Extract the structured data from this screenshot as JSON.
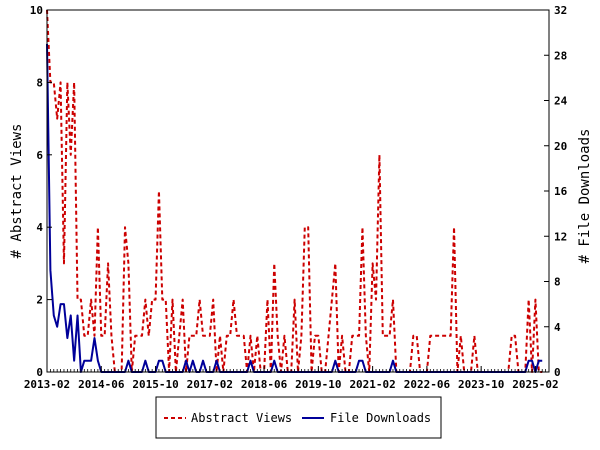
{
  "chart_data": {
    "type": "line",
    "ylabel_left": "# Abstract Views",
    "ylabel_right": "# File Downloads",
    "ylim_left": [
      0,
      10
    ],
    "ylim_right": [
      0,
      32
    ],
    "yticks_left": [
      "0",
      "2",
      "4",
      "6",
      "8",
      "10"
    ],
    "yticks_right": [
      "0",
      "4",
      "8",
      "12",
      "16",
      "20",
      "24",
      "28",
      "32"
    ],
    "xticks": [
      "2013-02",
      "2014-06",
      "2015-10",
      "2017-02",
      "2018-06",
      "2019-10",
      "2021-02",
      "2022-06",
      "2023-10",
      "2025-02"
    ],
    "x_range": [
      "2013-02",
      "2025-06"
    ],
    "legend_position": "bottom",
    "grid": false,
    "series": [
      {
        "name": "Abstract Views",
        "axis": "left",
        "color": "#cc0000",
        "style": "dashed",
        "points": [
          [
            "2013-02",
            10
          ],
          [
            "2013-03",
            8
          ],
          [
            "2013-04",
            8
          ],
          [
            "2013-05",
            7
          ],
          [
            "2013-06",
            8
          ],
          [
            "2013-07",
            3
          ],
          [
            "2013-08",
            8
          ],
          [
            "2013-09",
            6
          ],
          [
            "2013-10",
            8
          ],
          [
            "2013-11",
            2
          ],
          [
            "2013-12",
            2
          ],
          [
            "2014-01",
            1
          ],
          [
            "2014-02",
            1
          ],
          [
            "2014-03",
            2
          ],
          [
            "2014-04",
            1
          ],
          [
            "2014-05",
            4
          ],
          [
            "2014-06",
            1
          ],
          [
            "2014-07",
            1
          ],
          [
            "2014-08",
            3
          ],
          [
            "2014-09",
            1
          ],
          [
            "2014-10",
            0
          ],
          [
            "2014-11",
            0
          ],
          [
            "2014-12",
            0
          ],
          [
            "2015-01",
            4
          ],
          [
            "2015-02",
            3
          ],
          [
            "2015-03",
            0
          ],
          [
            "2015-04",
            1
          ],
          [
            "2015-05",
            1
          ],
          [
            "2015-06",
            1
          ],
          [
            "2015-07",
            2
          ],
          [
            "2015-08",
            1
          ],
          [
            "2015-09",
            2
          ],
          [
            "2015-10",
            2
          ],
          [
            "2015-11",
            5
          ],
          [
            "2015-12",
            2
          ],
          [
            "2016-01",
            2
          ],
          [
            "2016-02",
            0
          ],
          [
            "2016-03",
            2
          ],
          [
            "2016-04",
            0
          ],
          [
            "2016-05",
            1
          ],
          [
            "2016-06",
            2
          ],
          [
            "2016-07",
            0
          ],
          [
            "2016-08",
            1
          ],
          [
            "2016-09",
            1
          ],
          [
            "2016-10",
            1
          ],
          [
            "2016-11",
            2
          ],
          [
            "2016-12",
            1
          ],
          [
            "2017-01",
            1
          ],
          [
            "2017-02",
            1
          ],
          [
            "2017-03",
            2
          ],
          [
            "2017-04",
            0
          ],
          [
            "2017-05",
            1
          ],
          [
            "2017-06",
            0
          ],
          [
            "2017-07",
            1
          ],
          [
            "2017-08",
            1
          ],
          [
            "2017-09",
            2
          ],
          [
            "2017-10",
            1
          ],
          [
            "2017-11",
            1
          ],
          [
            "2017-12",
            1
          ],
          [
            "2018-01",
            0
          ],
          [
            "2018-02",
            1
          ],
          [
            "2018-03",
            0
          ],
          [
            "2018-04",
            1
          ],
          [
            "2018-05",
            0
          ],
          [
            "2018-06",
            0
          ],
          [
            "2018-07",
            2
          ],
          [
            "2018-08",
            0
          ],
          [
            "2018-09",
            3
          ],
          [
            "2018-10",
            1
          ],
          [
            "2018-11",
            0
          ],
          [
            "2018-12",
            1
          ],
          [
            "2019-01",
            0
          ],
          [
            "2019-02",
            0
          ],
          [
            "2019-03",
            2
          ],
          [
            "2019-04",
            0
          ],
          [
            "2019-05",
            1
          ],
          [
            "2019-06",
            4
          ],
          [
            "2019-07",
            4
          ],
          [
            "2019-08",
            0
          ],
          [
            "2019-09",
            1
          ],
          [
            "2019-10",
            1
          ],
          [
            "2019-11",
            0
          ],
          [
            "2019-12",
            0
          ],
          [
            "2020-01",
            1
          ],
          [
            "2020-02",
            2
          ],
          [
            "2020-03",
            3
          ],
          [
            "2020-04",
            0
          ],
          [
            "2020-05",
            1
          ],
          [
            "2020-06",
            0
          ],
          [
            "2020-07",
            0
          ],
          [
            "2020-08",
            1
          ],
          [
            "2020-09",
            1
          ],
          [
            "2020-10",
            1
          ],
          [
            "2020-11",
            4
          ],
          [
            "2020-12",
            1
          ],
          [
            "2021-01",
            0
          ],
          [
            "2021-02",
            3
          ],
          [
            "2021-03",
            2
          ],
          [
            "2021-04",
            6
          ],
          [
            "2021-05",
            1
          ],
          [
            "2021-06",
            1
          ],
          [
            "2021-07",
            1
          ],
          [
            "2021-08",
            2
          ],
          [
            "2021-09",
            0
          ],
          [
            "2021-10",
            0
          ],
          [
            "2021-11",
            0
          ],
          [
            "2021-12",
            0
          ],
          [
            "2022-01",
            0
          ],
          [
            "2022-02",
            1
          ],
          [
            "2022-03",
            1
          ],
          [
            "2022-04",
            0
          ],
          [
            "2022-05",
            0
          ],
          [
            "2022-06",
            0
          ],
          [
            "2022-07",
            1
          ],
          [
            "2022-08",
            1
          ],
          [
            "2022-09",
            1
          ],
          [
            "2022-10",
            1
          ],
          [
            "2022-11",
            1
          ],
          [
            "2022-12",
            1
          ],
          [
            "2023-01",
            1
          ],
          [
            "2023-02",
            4
          ],
          [
            "2023-03",
            0
          ],
          [
            "2023-04",
            1
          ],
          [
            "2023-05",
            0
          ],
          [
            "2023-06",
            0
          ],
          [
            "2023-07",
            0
          ],
          [
            "2023-08",
            1
          ],
          [
            "2023-09",
            0
          ],
          [
            "2023-10",
            0
          ],
          [
            "2023-11",
            0
          ],
          [
            "2023-12",
            0
          ],
          [
            "2024-01",
            0
          ],
          [
            "2024-02",
            0
          ],
          [
            "2024-03",
            0
          ],
          [
            "2024-04",
            0
          ],
          [
            "2024-05",
            0
          ],
          [
            "2024-06",
            0
          ],
          [
            "2024-07",
            1
          ],
          [
            "2024-08",
            1
          ],
          [
            "2024-09",
            0
          ],
          [
            "2024-10",
            0
          ],
          [
            "2024-11",
            0
          ],
          [
            "2024-12",
            2
          ],
          [
            "2025-01",
            0
          ],
          [
            "2025-02",
            2
          ],
          [
            "2025-03",
            0
          ],
          [
            "2025-04",
            0
          ]
        ]
      },
      {
        "name": "File Downloads",
        "axis": "right",
        "color": "#000099",
        "style": "solid",
        "points": [
          [
            "2013-02",
            29
          ],
          [
            "2013-03",
            9
          ],
          [
            "2013-04",
            5
          ],
          [
            "2013-05",
            4
          ],
          [
            "2013-06",
            6
          ],
          [
            "2013-07",
            6
          ],
          [
            "2013-08",
            3
          ],
          [
            "2013-09",
            5
          ],
          [
            "2013-10",
            1
          ],
          [
            "2013-11",
            5
          ],
          [
            "2013-12",
            0
          ],
          [
            "2014-01",
            1
          ],
          [
            "2014-02",
            1
          ],
          [
            "2014-03",
            1
          ],
          [
            "2014-04",
            3
          ],
          [
            "2014-05",
            1
          ],
          [
            "2014-06",
            0
          ],
          [
            "2014-07",
            0
          ],
          [
            "2014-08",
            0
          ],
          [
            "2014-09",
            0
          ],
          [
            "2014-10",
            0
          ],
          [
            "2014-11",
            0
          ],
          [
            "2014-12",
            0
          ],
          [
            "2015-01",
            0
          ],
          [
            "2015-02",
            1
          ],
          [
            "2015-03",
            0
          ],
          [
            "2015-04",
            0
          ],
          [
            "2015-05",
            0
          ],
          [
            "2015-06",
            0
          ],
          [
            "2015-07",
            1
          ],
          [
            "2015-08",
            0
          ],
          [
            "2015-09",
            0
          ],
          [
            "2015-10",
            0
          ],
          [
            "2015-11",
            1
          ],
          [
            "2015-12",
            1
          ],
          [
            "2016-01",
            0
          ],
          [
            "2016-02",
            0
          ],
          [
            "2016-03",
            0
          ],
          [
            "2016-04",
            0
          ],
          [
            "2016-05",
            0
          ],
          [
            "2016-06",
            0
          ],
          [
            "2016-07",
            1
          ],
          [
            "2016-08",
            0
          ],
          [
            "2016-09",
            1
          ],
          [
            "2016-10",
            0
          ],
          [
            "2016-11",
            0
          ],
          [
            "2016-12",
            1
          ],
          [
            "2017-01",
            0
          ],
          [
            "2017-02",
            0
          ],
          [
            "2017-03",
            0
          ],
          [
            "2017-04",
            1
          ],
          [
            "2017-05",
            0
          ],
          [
            "2017-06",
            0
          ],
          [
            "2017-07",
            0
          ],
          [
            "2017-08",
            0
          ],
          [
            "2017-09",
            0
          ],
          [
            "2017-10",
            0
          ],
          [
            "2017-11",
            0
          ],
          [
            "2017-12",
            0
          ],
          [
            "2018-01",
            0
          ],
          [
            "2018-02",
            1
          ],
          [
            "2018-03",
            0
          ],
          [
            "2018-04",
            0
          ],
          [
            "2018-05",
            0
          ],
          [
            "2018-06",
            0
          ],
          [
            "2018-07",
            0
          ],
          [
            "2018-08",
            0
          ],
          [
            "2018-09",
            1
          ],
          [
            "2018-10",
            0
          ],
          [
            "2018-11",
            0
          ],
          [
            "2018-12",
            0
          ],
          [
            "2019-01",
            0
          ],
          [
            "2019-02",
            0
          ],
          [
            "2019-03",
            0
          ],
          [
            "2019-04",
            0
          ],
          [
            "2019-05",
            0
          ],
          [
            "2019-06",
            0
          ],
          [
            "2019-07",
            0
          ],
          [
            "2019-08",
            0
          ],
          [
            "2019-09",
            0
          ],
          [
            "2019-10",
            0
          ],
          [
            "2019-11",
            0
          ],
          [
            "2019-12",
            0
          ],
          [
            "2020-01",
            0
          ],
          [
            "2020-02",
            0
          ],
          [
            "2020-03",
            1
          ],
          [
            "2020-04",
            0
          ],
          [
            "2020-05",
            0
          ],
          [
            "2020-06",
            0
          ],
          [
            "2020-07",
            0
          ],
          [
            "2020-08",
            0
          ],
          [
            "2020-09",
            0
          ],
          [
            "2020-10",
            1
          ],
          [
            "2020-11",
            1
          ],
          [
            "2020-12",
            0
          ],
          [
            "2021-01",
            0
          ],
          [
            "2021-02",
            0
          ],
          [
            "2021-03",
            0
          ],
          [
            "2021-04",
            0
          ],
          [
            "2021-05",
            0
          ],
          [
            "2021-06",
            0
          ],
          [
            "2021-07",
            0
          ],
          [
            "2021-08",
            1
          ],
          [
            "2021-09",
            0
          ],
          [
            "2021-10",
            0
          ],
          [
            "2021-11",
            0
          ],
          [
            "2021-12",
            0
          ],
          [
            "2022-01",
            0
          ],
          [
            "2022-02",
            0
          ],
          [
            "2022-03",
            0
          ],
          [
            "2022-04",
            0
          ],
          [
            "2022-05",
            0
          ],
          [
            "2022-06",
            0
          ],
          [
            "2022-07",
            0
          ],
          [
            "2022-08",
            0
          ],
          [
            "2022-09",
            0
          ],
          [
            "2022-10",
            0
          ],
          [
            "2022-11",
            0
          ],
          [
            "2022-12",
            0
          ],
          [
            "2023-01",
            0
          ],
          [
            "2023-02",
            0
          ],
          [
            "2023-03",
            0
          ],
          [
            "2023-04",
            0
          ],
          [
            "2023-05",
            0
          ],
          [
            "2023-06",
            0
          ],
          [
            "2023-07",
            0
          ],
          [
            "2023-08",
            0
          ],
          [
            "2023-09",
            0
          ],
          [
            "2023-10",
            0
          ],
          [
            "2023-11",
            0
          ],
          [
            "2023-12",
            0
          ],
          [
            "2024-01",
            0
          ],
          [
            "2024-02",
            0
          ],
          [
            "2024-03",
            0
          ],
          [
            "2024-04",
            0
          ],
          [
            "2024-05",
            0
          ],
          [
            "2024-06",
            0
          ],
          [
            "2024-07",
            0
          ],
          [
            "2024-08",
            0
          ],
          [
            "2024-09",
            0
          ],
          [
            "2024-10",
            0
          ],
          [
            "2024-11",
            0
          ],
          [
            "2024-12",
            1
          ],
          [
            "2025-01",
            1
          ],
          [
            "2025-02",
            0
          ],
          [
            "2025-03",
            1
          ],
          [
            "2025-04",
            1
          ]
        ]
      }
    ]
  }
}
